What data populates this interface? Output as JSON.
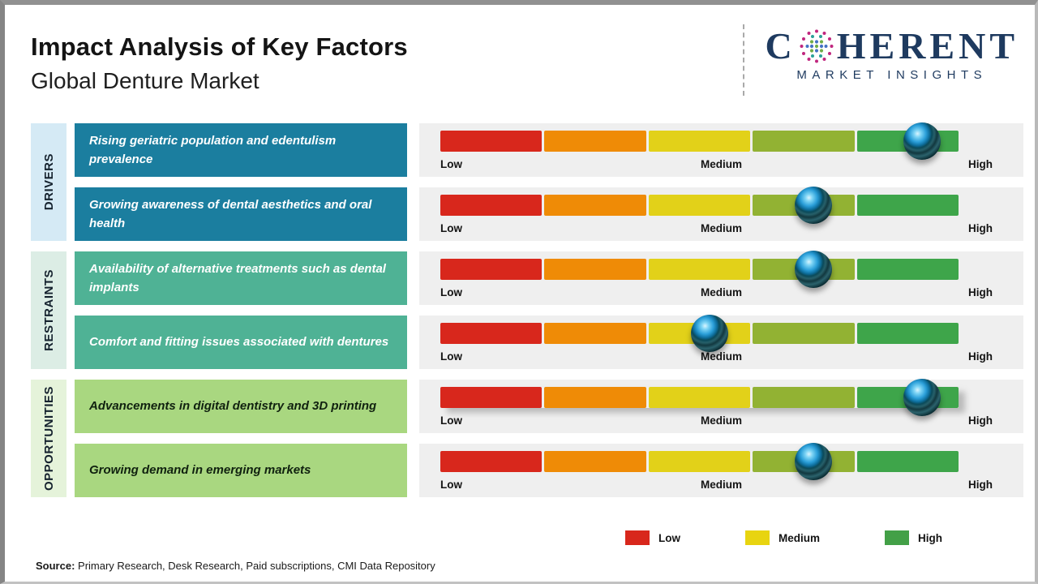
{
  "header": {
    "title": "Impact Analysis of Key Factors",
    "subtitle": "Global Denture Market"
  },
  "logo": {
    "word_start": "C",
    "word_end": "HERENT",
    "tagline": "MARKET INSIGHTS",
    "brand_color": "#1e3a5f"
  },
  "scale_labels": {
    "low": "Low",
    "medium": "Medium",
    "high": "High"
  },
  "gauge": {
    "segment_colors": [
      "#d8271c",
      "#ef8b06",
      "#e2d119",
      "#92b233",
      "#3ea54a"
    ],
    "panel_color": "#efefef"
  },
  "groups": [
    {
      "label": "DRIVERS",
      "sidebar_color": "#d5eaf5",
      "box_color": "#1b7e9f",
      "factors": [
        {
          "text": "Rising geriatric population and edentulism prevalence",
          "value_pct": 93,
          "impact": "High"
        },
        {
          "text": "Growing awareness of dental aesthetics and oral health",
          "value_pct": 72,
          "impact": "Medium-High"
        }
      ]
    },
    {
      "label": "RESTRAINTS",
      "sidebar_color": "#dcede5",
      "box_color": "#4fb295",
      "factors": [
        {
          "text": "Availability of alternative treatments such as dental implants",
          "value_pct": 72,
          "impact": "Medium-High"
        },
        {
          "text": "Comfort and fitting issues associated with dentures",
          "value_pct": 52,
          "impact": "Medium"
        }
      ]
    },
    {
      "label": "OPPORTUNITIES",
      "sidebar_color": "#e5f3da",
      "box_color": "#a9d780",
      "factors": [
        {
          "text": "Advancements in digital dentistry and 3D printing",
          "value_pct": 93,
          "impact": "High"
        },
        {
          "text": "Growing demand in emerging markets",
          "value_pct": 72,
          "impact": "Medium-High"
        }
      ]
    }
  ],
  "legend": [
    {
      "label": "Low",
      "color": "#d8271c"
    },
    {
      "label": "Medium",
      "color": "#e8d410"
    },
    {
      "label": "High",
      "color": "#43a047"
    }
  ],
  "source": {
    "prefix": "Source:",
    "text": " Primary Research, Desk Research, Paid subscriptions, CMI Data Repository"
  },
  "chart_data": {
    "type": "bar",
    "title": "Impact Analysis of Key Factors",
    "subtitle": "Global Denture Market",
    "orientation": "horizontal",
    "scale": {
      "min_label": "Low",
      "mid_label": "Medium",
      "max_label": "High",
      "range": [
        0,
        100
      ]
    },
    "categories": [
      "Rising geriatric population and edentulism prevalence",
      "Growing awareness of dental aesthetics and oral health",
      "Availability of alternative treatments such as dental implants",
      "Comfort and fitting issues associated with dentures",
      "Advancements in digital dentistry and 3D printing",
      "Growing demand in emerging markets"
    ],
    "groups": [
      "Drivers",
      "Drivers",
      "Restraints",
      "Restraints",
      "Opportunities",
      "Opportunities"
    ],
    "values": [
      93,
      72,
      72,
      52,
      93,
      72
    ],
    "impact_labels": [
      "High",
      "Medium-High",
      "Medium-High",
      "Medium",
      "High",
      "Medium-High"
    ],
    "legend_position": "bottom-right",
    "legend_entries": [
      "Low",
      "Medium",
      "High"
    ]
  }
}
